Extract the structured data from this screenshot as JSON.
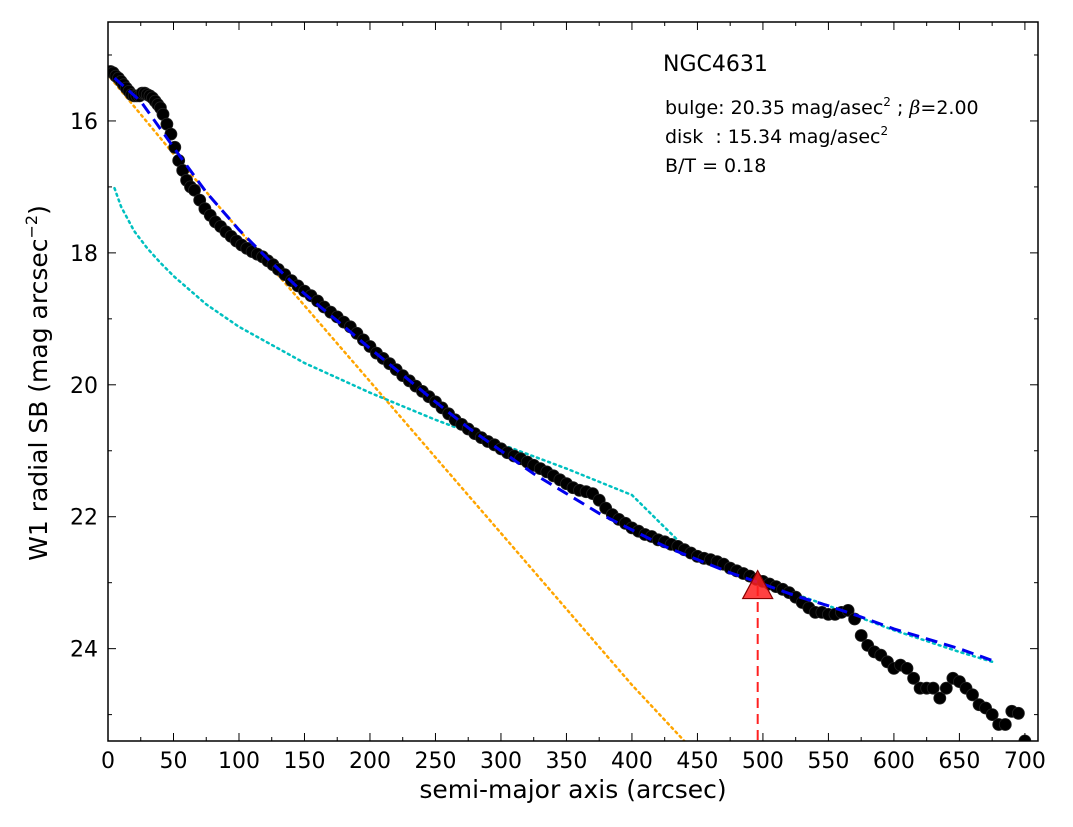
{
  "chart_data": {
    "type": "scatter",
    "title": "NGC4631",
    "xlabel": "semi-major axis (arcsec)",
    "ylabel_prefix": "W1 radial SB (mag arcsec",
    "ylabel_exp": "−2",
    "ylabel_suffix": ")",
    "xlim": [
      0,
      710
    ],
    "ylim": [
      25.4,
      14.5
    ],
    "y_inverted": true,
    "grid": false,
    "x_ticks": [
      0,
      50,
      100,
      150,
      200,
      250,
      300,
      350,
      400,
      450,
      500,
      550,
      600,
      650,
      700
    ],
    "x_minor_ticks": [
      25,
      75,
      125,
      175,
      225,
      275,
      325,
      375,
      425,
      475,
      525,
      575,
      625,
      675
    ],
    "y_ticks": [
      16,
      18,
      20,
      22,
      24
    ],
    "y_minor_ticks": [
      15,
      17,
      19,
      21,
      23,
      25
    ],
    "annotations": {
      "bulge_prefix": "bulge: 20.35 mag/asec",
      "bulge_exp": "2",
      "bulge_sep": " ; ",
      "bulge_beta_symbol": "β",
      "bulge_beta_value": "=2.00",
      "disk_prefix": "disk  : 15.34 mag/asec",
      "disk_exp": "2",
      "bt": "B/T = 0.18"
    },
    "colors": {
      "points": "#000000",
      "total_fit": "#0000ee",
      "bulge": "#ffa500",
      "disk": "#00c0c0",
      "marker": "#ff2020"
    },
    "series": [
      {
        "kind": "points",
        "x": [
          2,
          4,
          6,
          8,
          10,
          12,
          14,
          16,
          18,
          20,
          22,
          24,
          26,
          28,
          30,
          32,
          34,
          36,
          38,
          40,
          42,
          45,
          48,
          51,
          54,
          57,
          60,
          63,
          66,
          70,
          74,
          78,
          82,
          86,
          90,
          94,
          98,
          102,
          106,
          110,
          114,
          118,
          122,
          126,
          130,
          135,
          140,
          145,
          150,
          155,
          160,
          165,
          170,
          175,
          180,
          185,
          190,
          195,
          200,
          205,
          210,
          215,
          220,
          225,
          230,
          235,
          240,
          245,
          250,
          255,
          260,
          265,
          270,
          275,
          280,
          285,
          290,
          295,
          300,
          305,
          310,
          315,
          320,
          325,
          330,
          335,
          340,
          345,
          350,
          355,
          360,
          365,
          370,
          375,
          380,
          385,
          390,
          395,
          400,
          405,
          410,
          415,
          420,
          425,
          430,
          435,
          440,
          445,
          450,
          455,
          460,
          465,
          470,
          475,
          480,
          485,
          490,
          495,
          500,
          505,
          510,
          515,
          520,
          525,
          530,
          535,
          540,
          545,
          550,
          555,
          560,
          565,
          570,
          575,
          580,
          585,
          590,
          595,
          600,
          605,
          610,
          615,
          620,
          625,
          630,
          635,
          640,
          645,
          650,
          655,
          660,
          665,
          670,
          675,
          680,
          685,
          690,
          695,
          700
        ],
        "y": [
          15.25,
          15.27,
          15.32,
          15.35,
          15.4,
          15.45,
          15.5,
          15.55,
          15.6,
          15.62,
          15.62,
          15.62,
          15.58,
          15.58,
          15.6,
          15.62,
          15.65,
          15.7,
          15.75,
          15.8,
          15.9,
          16.05,
          16.2,
          16.4,
          16.6,
          16.75,
          16.9,
          17.0,
          17.05,
          17.2,
          17.33,
          17.43,
          17.53,
          17.6,
          17.68,
          17.75,
          17.82,
          17.88,
          17.93,
          17.98,
          18.02,
          18.06,
          18.12,
          18.18,
          18.25,
          18.33,
          18.42,
          18.5,
          18.58,
          18.65,
          18.73,
          18.82,
          18.9,
          18.97,
          19.05,
          19.12,
          19.22,
          19.32,
          19.42,
          19.52,
          19.6,
          19.68,
          19.77,
          19.86,
          19.94,
          20.02,
          20.1,
          20.18,
          20.26,
          20.35,
          20.44,
          20.53,
          20.6,
          20.67,
          20.74,
          20.8,
          20.86,
          20.91,
          20.97,
          21.03,
          21.08,
          21.12,
          21.17,
          21.22,
          21.27,
          21.32,
          21.38,
          21.44,
          21.5,
          21.56,
          21.6,
          21.62,
          21.65,
          21.75,
          21.87,
          21.97,
          22.04,
          22.1,
          22.17,
          22.22,
          22.27,
          22.3,
          22.35,
          22.38,
          22.42,
          22.45,
          22.5,
          22.55,
          22.6,
          22.63,
          22.65,
          22.68,
          22.72,
          22.78,
          22.82,
          22.86,
          22.9,
          22.95,
          22.98,
          23.02,
          23.06,
          23.1,
          23.15,
          23.22,
          23.3,
          23.38,
          23.45,
          23.45,
          23.48,
          23.48,
          23.45,
          23.42,
          23.55,
          23.8,
          23.95,
          24.05,
          24.1,
          24.2,
          24.3,
          24.25,
          24.3,
          24.45,
          24.6,
          24.6,
          24.6,
          24.75,
          24.6,
          24.45,
          24.5,
          24.6,
          24.7,
          24.85,
          24.9,
          25.0,
          25.15,
          25.15,
          24.95,
          24.98,
          25.4
        ]
      },
      {
        "kind": "total_fit",
        "x": [
          5,
          25,
          50,
          75,
          100,
          125,
          150,
          175,
          200,
          225,
          250,
          275,
          300,
          325,
          350,
          375,
          400,
          425,
          450,
          475,
          500,
          525,
          550,
          575,
          600,
          625,
          650,
          675
        ],
        "y": [
          15.35,
          15.7,
          16.4,
          17.08,
          17.65,
          18.15,
          18.62,
          19.03,
          19.45,
          19.85,
          20.26,
          20.65,
          21.0,
          21.35,
          21.65,
          21.95,
          22.2,
          22.45,
          22.65,
          22.85,
          23.02,
          23.2,
          23.35,
          23.52,
          23.7,
          23.85,
          24.0,
          24.18
        ]
      },
      {
        "kind": "bulge",
        "x": [
          2,
          50,
          100,
          150,
          200,
          250,
          300,
          350,
          400,
          440
        ],
        "y": [
          15.35,
          16.5,
          17.65,
          18.8,
          19.95,
          21.1,
          22.25,
          23.4,
          24.55,
          25.4
        ]
      },
      {
        "kind": "disk",
        "x": [
          5,
          10,
          20,
          30,
          40,
          50,
          75,
          100,
          150,
          200,
          250,
          300,
          350,
          400,
          450,
          500,
          550,
          600,
          650,
          675
        ],
        "y": [
          17.02,
          17.3,
          17.67,
          17.93,
          18.15,
          18.35,
          18.78,
          19.12,
          19.67,
          20.12,
          20.53,
          20.9,
          21.27,
          21.67,
          22.65,
          23.0,
          23.35,
          23.72,
          24.05,
          24.2
        ]
      },
      {
        "kind": "marker",
        "x": [
          496
        ],
        "y": [
          23.05
        ]
      }
    ]
  }
}
